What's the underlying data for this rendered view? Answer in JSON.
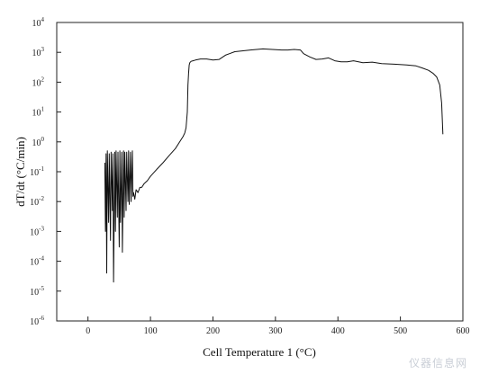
{
  "chart_data": {
    "type": "line",
    "title": "",
    "xlabel": "Cell Temperature 1 (°C)",
    "ylabel": "dT/dt (°C/min)",
    "xlim": [
      -50,
      600
    ],
    "ylim_log10": [
      -6,
      4
    ],
    "y_scale": "log",
    "x_ticks": [
      0,
      100,
      200,
      300,
      400,
      500,
      600
    ],
    "y_ticks": [
      -6,
      -5,
      -4,
      -3,
      -2,
      -1,
      0,
      1,
      2,
      3,
      4
    ],
    "y_tick_labels": [
      "10",
      "10",
      "10",
      "10",
      "10",
      "10",
      "10",
      "10",
      "10",
      "10",
      "10"
    ],
    "y_tick_exponents": [
      "-6",
      "-5",
      "-4",
      "-3",
      "-2",
      "-1",
      "0",
      "1",
      "2",
      "3",
      "4"
    ],
    "grid": false,
    "line_color": "#111111",
    "series": [
      {
        "x": [
          27,
          28,
          29,
          30,
          31,
          33,
          34,
          36,
          37,
          39,
          40,
          41,
          43,
          44,
          45,
          47,
          48,
          50,
          51,
          52,
          54,
          55,
          57,
          58,
          59,
          61,
          62,
          64,
          65,
          66,
          68,
          69,
          71,
          72,
          73,
          75,
          77,
          80,
          83,
          86,
          90,
          95,
          100,
          110,
          120,
          130,
          140,
          148,
          152,
          155,
          157,
          159,
          160,
          161,
          162,
          163,
          165,
          168,
          172,
          180,
          190,
          200,
          210,
          220,
          235,
          245,
          260,
          280,
          295,
          310,
          320,
          330,
          340,
          345,
          355,
          365,
          375,
          385,
          395,
          405,
          415,
          425,
          440,
          455,
          470,
          490,
          510,
          525,
          535,
          545,
          552,
          558,
          563,
          566,
          568
        ],
        "y": [
          0.2,
          0.001,
          0.4,
          4e-05,
          0.5,
          0.002,
          0.4,
          0.0005,
          0.45,
          0.005,
          0.4,
          2e-05,
          0.45,
          0.001,
          0.5,
          0.003,
          0.45,
          0.0003,
          0.5,
          0.002,
          0.45,
          0.0002,
          0.5,
          0.003,
          0.45,
          0.005,
          0.45,
          0.01,
          0.5,
          0.008,
          0.45,
          0.01,
          0.5,
          0.015,
          0.02,
          0.012,
          0.025,
          0.02,
          0.03,
          0.03,
          0.04,
          0.05,
          0.07,
          0.12,
          0.2,
          0.35,
          0.6,
          1.1,
          1.5,
          2,
          3,
          10,
          80,
          200,
          380,
          450,
          500,
          520,
          550,
          600,
          600,
          550,
          580,
          800,
          1050,
          1100,
          1200,
          1300,
          1250,
          1200,
          1200,
          1250,
          1200,
          900,
          700,
          580,
          600,
          650,
          520,
          480,
          480,
          520,
          450,
          470,
          420,
          400,
          380,
          350,
          300,
          250,
          200,
          150,
          80,
          20,
          1.8
        ]
      }
    ]
  },
  "watermark": "仪器信息网"
}
